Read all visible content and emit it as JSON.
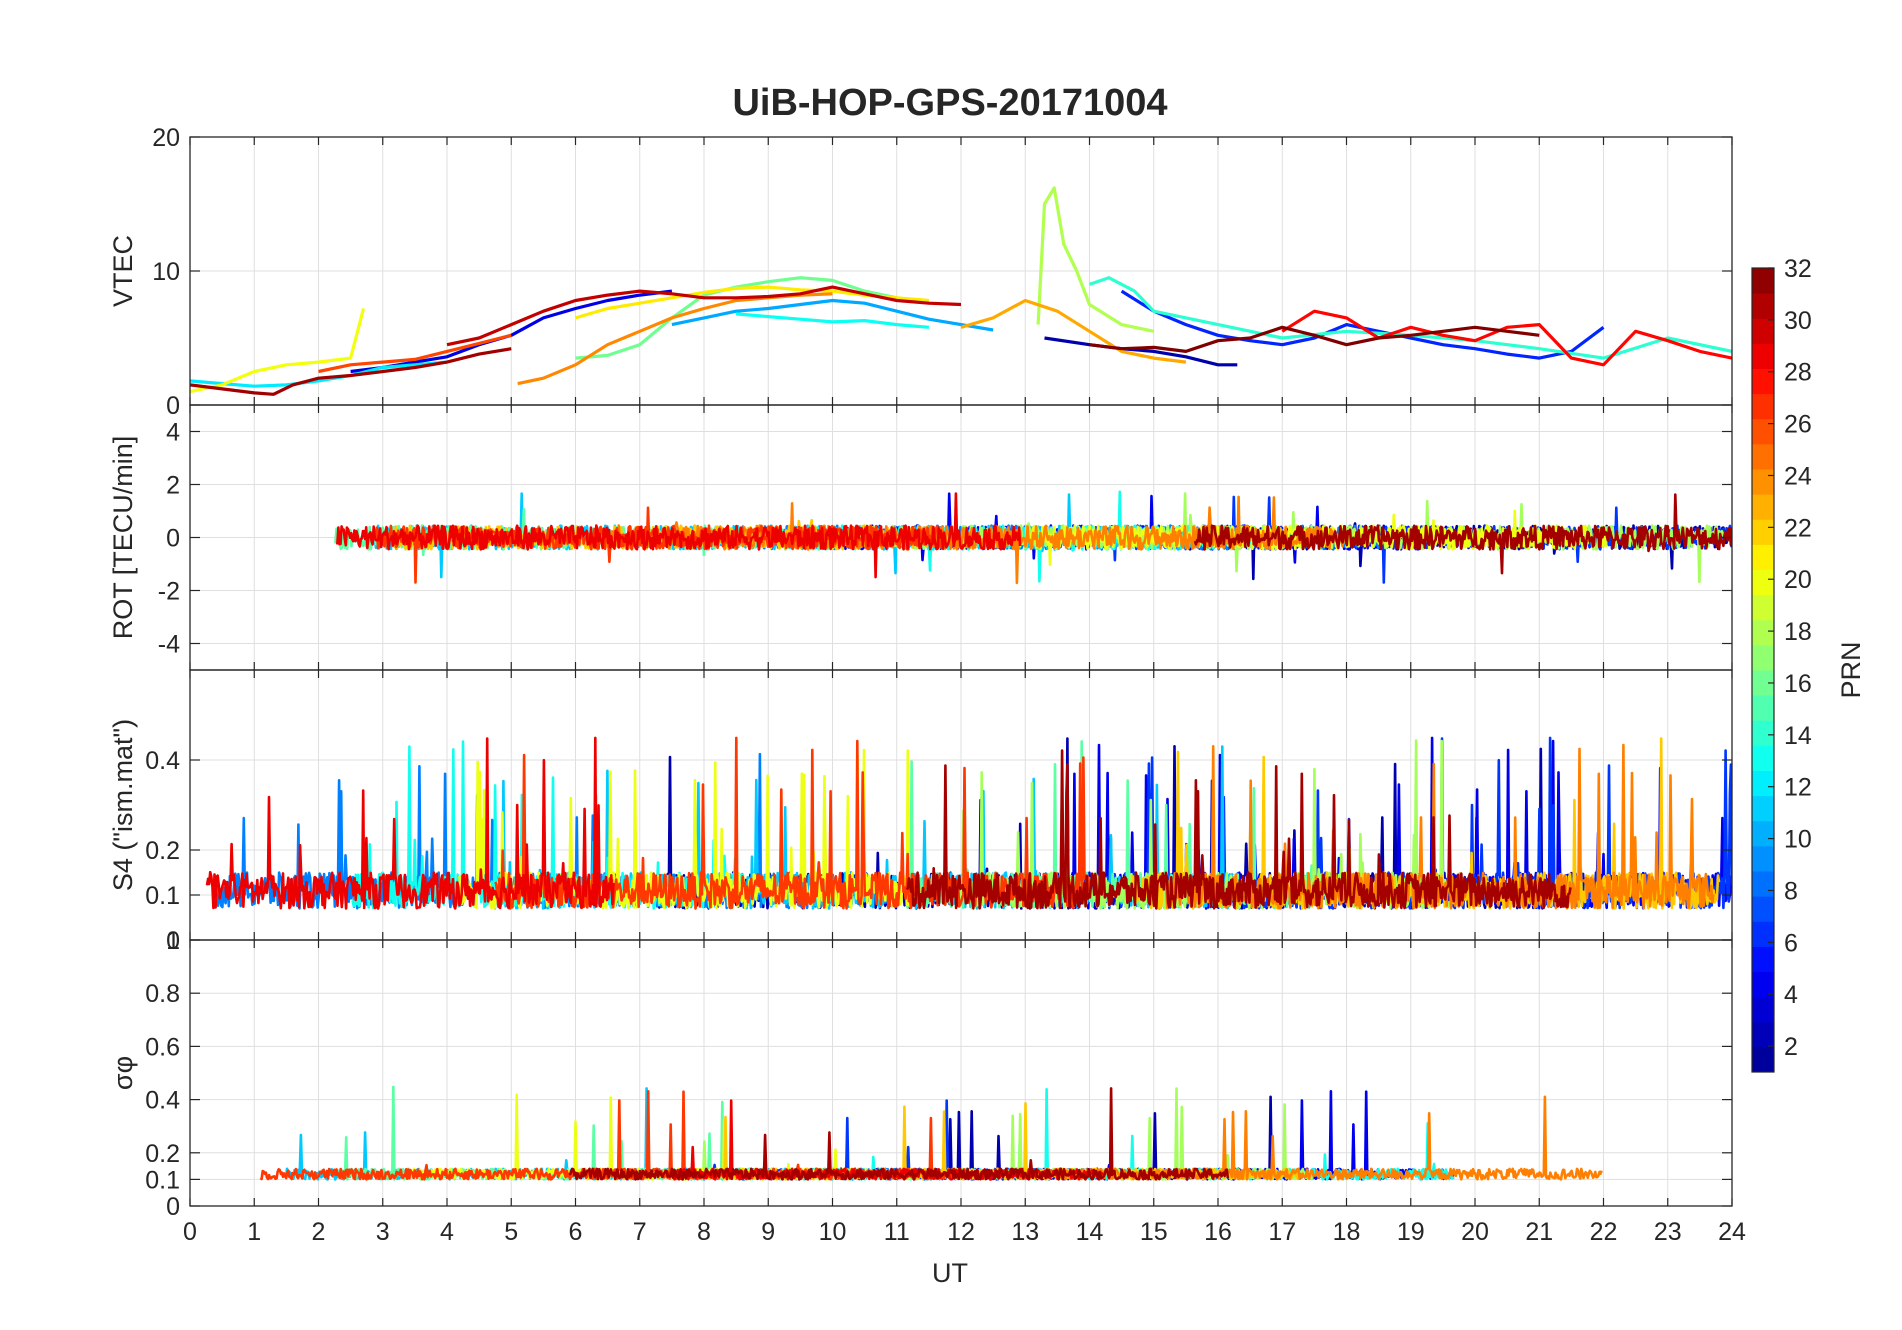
{
  "chart_data": {
    "type": "line",
    "title": "UiB-HOP-GPS-20171004",
    "xlabel": "UT",
    "xlim": [
      0,
      24
    ],
    "xticks": [
      "0",
      "1",
      "2",
      "3",
      "4",
      "5",
      "6",
      "7",
      "8",
      "9",
      "10",
      "11",
      "12",
      "13",
      "14",
      "15",
      "16",
      "17",
      "18",
      "19",
      "20",
      "21",
      "22",
      "23",
      "24"
    ],
    "colorbar": {
      "label": "PRN",
      "range": [
        1,
        32
      ],
      "ticks": [
        "2",
        "4",
        "6",
        "8",
        "10",
        "12",
        "14",
        "16",
        "18",
        "20",
        "22",
        "24",
        "26",
        "28",
        "30",
        "32"
      ],
      "colormap": [
        "#00008f",
        "#0000ff",
        "#0080ff",
        "#00ffff",
        "#80ff80",
        "#ffff00",
        "#ff8000",
        "#ff0000",
        "#800000"
      ]
    },
    "panels": [
      {
        "id": "vtec",
        "ylabel": "VTEC",
        "ylim": [
          0,
          20
        ],
        "yticks": [
          "0",
          "10",
          "20"
        ],
        "series": [
          {
            "prn": 2,
            "x": [
              13.3,
              14.0,
              14.5,
              15.0,
              15.5,
              16.0,
              16.3
            ],
            "y": [
              5.0,
              4.5,
              4.2,
              4.0,
              3.6,
              3.0,
              3.0
            ]
          },
          {
            "prn": 4,
            "x": [
              2.5,
              3.0,
              3.5,
              4.0,
              4.5,
              5.0,
              5.5,
              6.0,
              6.5,
              7.0,
              7.5
            ],
            "y": [
              2.5,
              2.8,
              3.2,
              3.6,
              4.5,
              5.2,
              6.5,
              7.2,
              7.8,
              8.2,
              8.5
            ]
          },
          {
            "prn": 6,
            "x": [
              14.5,
              15.0,
              15.5,
              16.0,
              16.5,
              17.0,
              17.5,
              18.0,
              18.5,
              19.0,
              19.5,
              20.0,
              20.5,
              21.0,
              21.5,
              22.0
            ],
            "y": [
              8.5,
              7.0,
              6.0,
              5.2,
              4.8,
              4.5,
              5.0,
              6.0,
              5.5,
              5.0,
              4.5,
              4.2,
              3.8,
              3.5,
              4.0,
              5.8
            ]
          },
          {
            "prn": 10,
            "x": [
              7.5,
              8.0,
              8.5,
              9.0,
              9.5,
              10.0,
              10.5,
              11.0,
              11.5,
              12.0,
              12.5
            ],
            "y": [
              6.0,
              6.5,
              7.0,
              7.2,
              7.5,
              7.8,
              7.6,
              7.0,
              6.4,
              6.0,
              5.6
            ]
          },
          {
            "prn": 12,
            "x": [
              0.0,
              0.5,
              1.0,
              1.5,
              2.0,
              2.5,
              3.0,
              3.5,
              4.0
            ],
            "y": [
              1.8,
              1.6,
              1.4,
              1.5,
              1.8,
              2.2,
              2.8,
              3.0,
              3.2
            ]
          },
          {
            "prn": 13,
            "x": [
              8.5,
              9.0,
              9.5,
              10.0,
              10.5,
              11.0,
              11.5
            ],
            "y": [
              6.8,
              6.6,
              6.4,
              6.2,
              6.3,
              6.0,
              5.8
            ]
          },
          {
            "prn": 14,
            "x": [
              14.0,
              14.3,
              14.7,
              15.0,
              16.0,
              17.0,
              18.0,
              19.0,
              20.0,
              21.0,
              22.0,
              23.0,
              24.0
            ],
            "y": [
              9.0,
              9.5,
              8.5,
              7.0,
              6.0,
              5.0,
              5.5,
              5.2,
              4.8,
              4.2,
              3.5,
              5.0,
              4.0
            ]
          },
          {
            "prn": 16,
            "x": [
              6.0,
              6.5,
              7.0,
              7.5,
              8.0,
              8.5,
              9.0,
              9.5,
              10.0,
              10.5,
              11.0
            ],
            "y": [
              3.5,
              3.7,
              4.5,
              6.5,
              8.2,
              8.8,
              9.2,
              9.5,
              9.3,
              8.5,
              8.0
            ]
          },
          {
            "prn": 18,
            "x": [
              13.2,
              13.3,
              13.45,
              13.6,
              13.8,
              14.0,
              14.5,
              15.0
            ],
            "y": [
              6.0,
              15.0,
              16.2,
              12.0,
              10.0,
              7.5,
              6.0,
              5.5
            ]
          },
          {
            "prn": 20,
            "x": [
              0.0,
              0.5,
              1.0,
              1.5,
              2.0,
              2.5,
              2.7
            ],
            "y": [
              1.0,
              1.5,
              2.5,
              3.0,
              3.2,
              3.5,
              7.2
            ]
          },
          {
            "prn": 21,
            "x": [
              6.0,
              6.5,
              7.0,
              7.5,
              8.0,
              8.5,
              9.0,
              9.5,
              10.0,
              10.5,
              11.0,
              11.5
            ],
            "y": [
              6.5,
              7.2,
              7.6,
              8.0,
              8.4,
              8.7,
              8.8,
              8.6,
              8.5,
              8.2,
              8.0,
              7.8
            ]
          },
          {
            "prn": 23,
            "x": [
              12.0,
              12.5,
              13.0,
              13.5,
              14.0,
              14.5,
              15.0,
              15.5
            ],
            "y": [
              5.8,
              6.5,
              7.8,
              7.0,
              5.5,
              4.0,
              3.5,
              3.2
            ]
          },
          {
            "prn": 24,
            "x": [
              5.1,
              5.5,
              6.0,
              6.5,
              7.0,
              7.5,
              8.0,
              8.5,
              9.0,
              9.5,
              10.0
            ],
            "y": [
              1.6,
              2.0,
              3.0,
              4.5,
              5.5,
              6.5,
              7.2,
              7.8,
              8.0,
              8.2,
              8.3
            ]
          },
          {
            "prn": 26,
            "x": [
              2.0,
              2.5,
              3.0,
              3.5,
              4.0,
              4.5,
              5.0
            ],
            "y": [
              2.5,
              3.0,
              3.2,
              3.4,
              4.0,
              4.6,
              5.2
            ]
          },
          {
            "prn": 28,
            "x": [
              17.0,
              17.5,
              18.0,
              18.5,
              19.0,
              19.5,
              20.0,
              20.5,
              21.0,
              21.5,
              22.0,
              22.5,
              23.0,
              23.5,
              24.0
            ],
            "y": [
              5.5,
              7.0,
              6.5,
              5.0,
              5.8,
              5.2,
              4.8,
              5.8,
              6.0,
              3.5,
              3.0,
              5.5,
              4.8,
              4.0,
              3.5
            ]
          },
          {
            "prn": 30,
            "x": [
              4.0,
              4.5,
              5.0,
              5.5,
              6.0,
              6.5,
              7.0,
              7.5,
              8.0,
              8.5,
              9.0,
              9.5,
              10.0,
              10.5,
              11.0,
              11.5,
              12.0
            ],
            "y": [
              4.5,
              5.0,
              6.0,
              7.0,
              7.8,
              8.2,
              8.5,
              8.3,
              8.0,
              8.0,
              8.1,
              8.3,
              8.8,
              8.3,
              7.8,
              7.6,
              7.5
            ]
          },
          {
            "prn": 31,
            "x": [
              0.0,
              0.5,
              1.0,
              1.3,
              1.6,
              2.0,
              2.5,
              3.0,
              3.5,
              4.0,
              4.5,
              5.0
            ],
            "y": [
              1.5,
              1.2,
              0.9,
              0.8,
              1.5,
              2.0,
              2.2,
              2.5,
              2.8,
              3.2,
              3.8,
              4.2
            ]
          },
          {
            "prn": 32,
            "x": [
              14.0,
              14.5,
              15.0,
              15.5,
              16.0,
              16.5,
              17.0,
              17.5,
              18.0,
              18.5,
              19.0,
              19.5,
              20.0,
              20.5,
              21.0
            ],
            "y": [
              4.5,
              4.2,
              4.3,
              4.0,
              4.8,
              5.0,
              5.8,
              5.2,
              4.5,
              5.0,
              5.2,
              5.5,
              5.8,
              5.5,
              5.2
            ]
          }
        ]
      },
      {
        "id": "rot",
        "ylabel": "ROT [TECU/min]",
        "ylim": [
          -5,
          5
        ],
        "yticks": [
          "-4",
          "-2",
          "0",
          "2",
          "4"
        ]
      },
      {
        "id": "s4",
        "ylabel": "S4 (\"ism.mat\")",
        "ylim": [
          0,
          0.6
        ],
        "yticks": [
          "0",
          "0.1",
          "0.2",
          "0.4"
        ]
      },
      {
        "id": "sigmaphi",
        "ylabel": "σφ",
        "ylim": [
          0,
          1
        ],
        "yticks": [
          "0",
          "0.1",
          "0.2",
          "0.4",
          "0.6",
          "0.8",
          "1"
        ]
      }
    ]
  }
}
